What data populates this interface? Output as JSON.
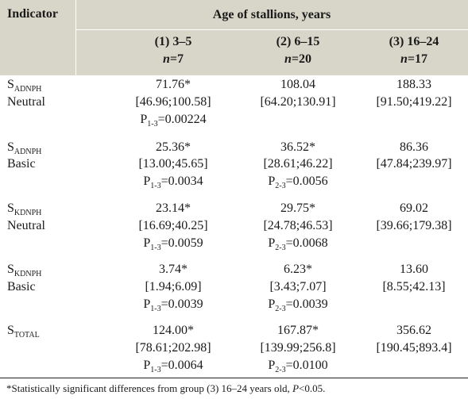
{
  "header": {
    "indicator": "Indicator",
    "age_title": "Age of stallions, years",
    "groups": [
      {
        "label": "(1) 3–5",
        "n_label": "n",
        "n_value": "=7"
      },
      {
        "label": "(2) 6–15",
        "n_label": "n",
        "n_value": "=20"
      },
      {
        "label": "(3) 16–24",
        "n_label": "n",
        "n_value": "=17"
      }
    ]
  },
  "rows": [
    {
      "symbol": "S",
      "subscript": "ADNPH",
      "kind": "Neutral",
      "cells": [
        {
          "value": "71.76*",
          "range": "[46.96;100.58]",
          "p_prefix": "P",
          "p_sub": "1-3",
          "p_value": "=0.00224"
        },
        {
          "value": "108.04",
          "range": "[64.20;130.91]"
        },
        {
          "value": "188.33",
          "range": "[91.50;419.22]"
        }
      ]
    },
    {
      "symbol": "S",
      "subscript": "ADNPH",
      "kind": "Basic",
      "cells": [
        {
          "value": "25.36*",
          "range": "[13.00;45.65]",
          "p_prefix": "P",
          "p_sub": "1-3",
          "p_value": "=0.0034"
        },
        {
          "value": "36.52*",
          "range": "[28.61;46.22]",
          "p_prefix": "P",
          "p_sub": "2-3",
          "p_value": "=0.0056"
        },
        {
          "value": "86.36",
          "range": "[47.84;239.97]"
        }
      ]
    },
    {
      "symbol": "S",
      "subscript": "KDNPH",
      "kind": "Neutral",
      "cells": [
        {
          "value": "23.14*",
          "range": "[16.69;40.25]",
          "p_prefix": "P",
          "p_sub": "1-3",
          "p_value": "=0.0059"
        },
        {
          "value": "29.75*",
          "range": "[24.78;46.53]",
          "p_prefix": "P",
          "p_sub": "2-3",
          "p_value": "=0.0068"
        },
        {
          "value": "69.02",
          "range": "[39.66;179.38]"
        }
      ]
    },
    {
      "symbol": "S",
      "subscript": "KDNPH",
      "kind": "Basic",
      "cells": [
        {
          "value": "3.74*",
          "range": "[1.94;6.09]",
          "p_prefix": "P",
          "p_sub": "1-3",
          "p_value": "=0.0039"
        },
        {
          "value": "6.23*",
          "range": "[3.43;7.07]",
          "p_prefix": "P",
          "p_sub": "2-3",
          "p_value": "=0.0039"
        },
        {
          "value": "13.60",
          "range": "[8.55;42.13]"
        }
      ]
    },
    {
      "symbol": "S",
      "subscript": "TOTAL",
      "kind": "",
      "cells": [
        {
          "value": "124.00*",
          "range": "[78.61;202.98]",
          "p_prefix": "P",
          "p_sub": "1-3",
          "p_value": "=0.0064"
        },
        {
          "value": "167.87*",
          "range": "[139.99;256.8]",
          "p_prefix": "P",
          "p_sub": "2-3",
          "p_value": "=0.0100"
        },
        {
          "value": "356.62",
          "range": "[190.45;893.4]"
        }
      ]
    }
  ],
  "footnote": {
    "text": "*Statistically significant differences from group (3) 16–24 years old, ",
    "p_label": "P",
    "p_value": "<0.05."
  }
}
